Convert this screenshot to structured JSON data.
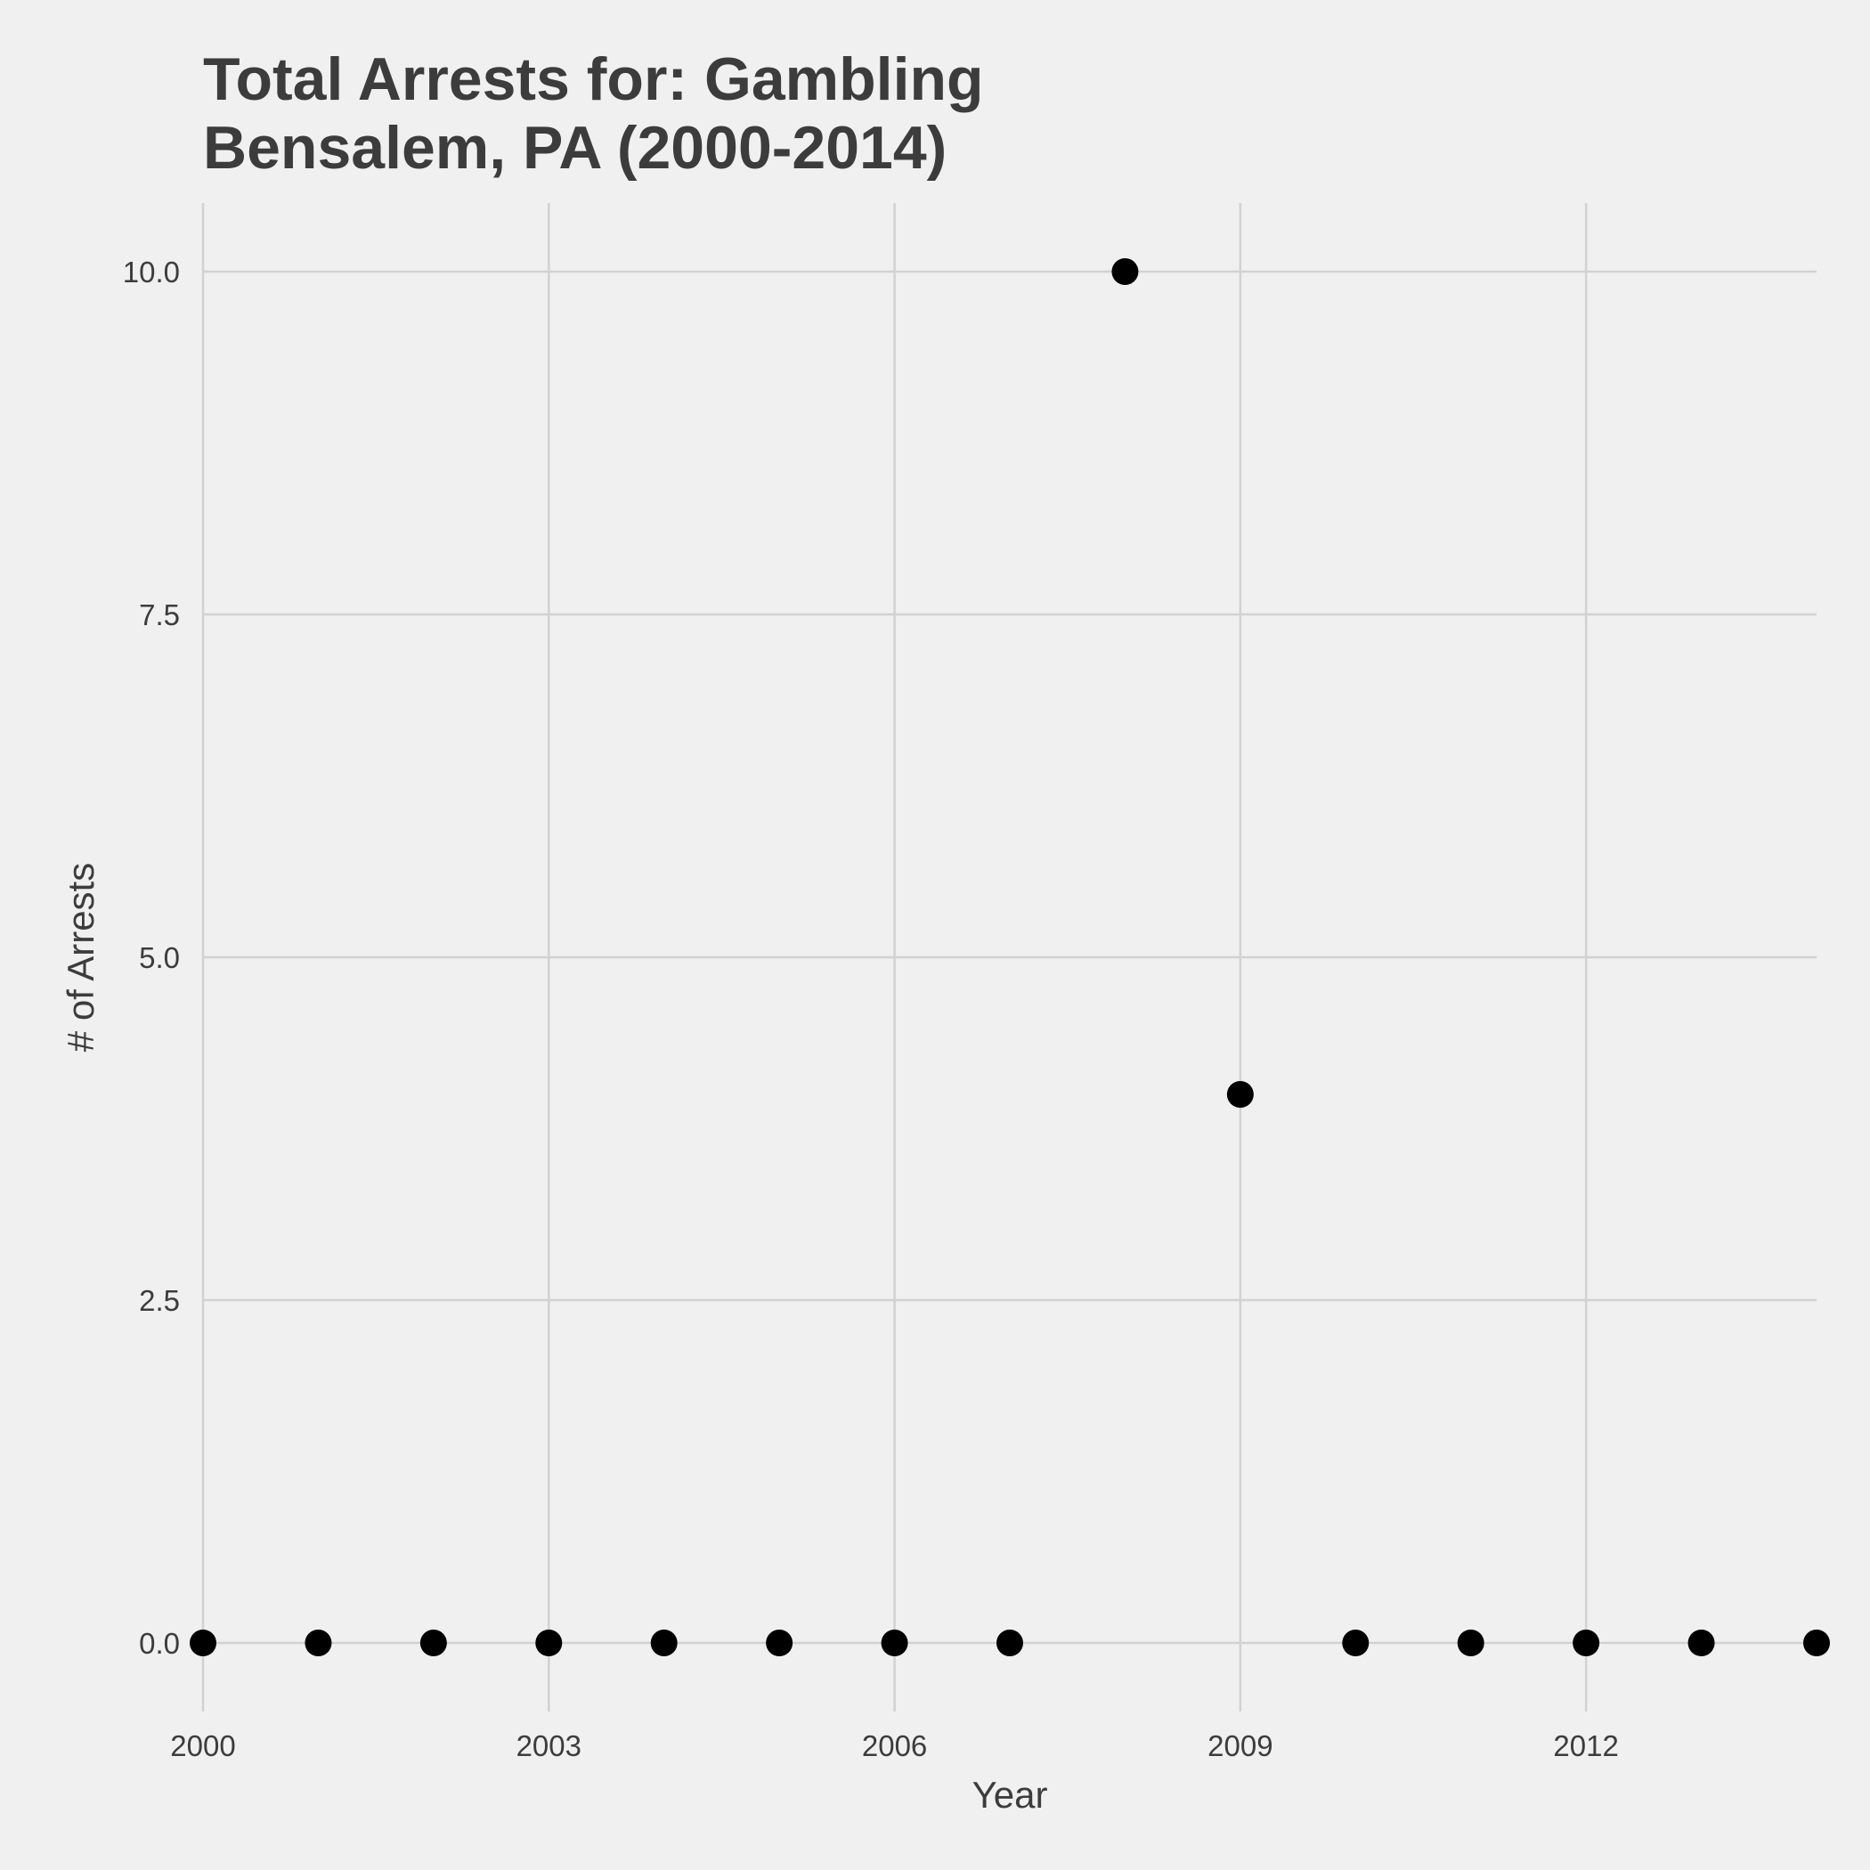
{
  "title": {
    "line1": "Total Arrests for: Gambling",
    "line2": "Bensalem, PA (2000-2014)"
  },
  "colors": {
    "background": "#f0f0f0",
    "grid": "#d2d2d2",
    "text": "#3c3c3c",
    "point": "#000000"
  },
  "chart_data": {
    "type": "scatter",
    "title": "Total Arrests for: Gambling\nBensalem, PA (2000-2014)",
    "xlabel": "Year",
    "ylabel": "# of Arrests",
    "xlim": [
      2000,
      2014
    ],
    "ylim": [
      -0.5,
      10.5
    ],
    "x_ticks": [
      2000,
      2003,
      2006,
      2009,
      2012
    ],
    "y_ticks": [
      0,
      2.5,
      5,
      7.5,
      10
    ],
    "y_tick_labels": [
      "0.0",
      "2.5",
      "5.0",
      "7.5",
      "10.0"
    ],
    "grid": true,
    "legend": "none",
    "x": [
      2000,
      2001,
      2002,
      2003,
      2004,
      2005,
      2006,
      2007,
      2008,
      2009,
      2010,
      2011,
      2012,
      2013,
      2014
    ],
    "y": [
      0,
      0,
      0,
      0,
      0,
      0,
      0,
      0,
      10,
      4,
      0,
      0,
      0,
      0,
      0
    ]
  }
}
